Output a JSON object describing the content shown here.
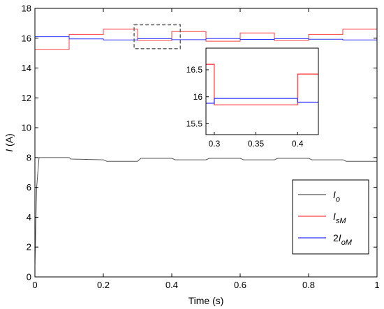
{
  "chart_data": {
    "type": "line",
    "title": "",
    "xlabel": "Time (s)",
    "ylabel": "I (A)",
    "xlim": [
      0,
      1
    ],
    "ylim": [
      0,
      18
    ],
    "xticks": [
      "0",
      "0.2",
      "0.4",
      "0.6",
      "0.8",
      "1"
    ],
    "xtick_values": [
      0,
      0.2,
      0.4,
      0.6,
      0.8,
      1
    ],
    "yticks": [
      "0",
      "2",
      "4",
      "6",
      "8",
      "10",
      "12",
      "14",
      "16",
      "18"
    ],
    "ytick_values": [
      0,
      2,
      4,
      6,
      8,
      10,
      12,
      14,
      16,
      18
    ],
    "grid": false,
    "legend": {
      "placement": "bottom-right"
    },
    "series": [
      {
        "key": "io",
        "name": "Io",
        "sym": "I",
        "sub": "o",
        "coef": "",
        "color": "#555555",
        "x": [
          0,
          0.005,
          0.012,
          0.02,
          0.1,
          0.105,
          0.2,
          0.21,
          0.3,
          0.31,
          0.4,
          0.41,
          0.5,
          0.51,
          0.6,
          0.61,
          0.7,
          0.71,
          0.8,
          0.81,
          0.9,
          0.91,
          1.0
        ],
        "y": [
          0.8,
          6.0,
          8.0,
          8.0,
          8.0,
          7.9,
          7.85,
          7.75,
          7.75,
          7.95,
          7.95,
          7.85,
          7.85,
          7.95,
          7.95,
          7.85,
          7.85,
          7.95,
          7.95,
          7.85,
          7.85,
          7.75,
          7.75
        ]
      },
      {
        "key": "ism",
        "name": "IsM",
        "sym": "I",
        "sub": "sM",
        "coef": "",
        "color": "#ff4040",
        "x": [
          0,
          0.1,
          0.1,
          0.2,
          0.2,
          0.3,
          0.3,
          0.4,
          0.4,
          0.5,
          0.5,
          0.6,
          0.6,
          0.7,
          0.7,
          0.8,
          0.8,
          0.9,
          0.9,
          1.0
        ],
        "y": [
          15.25,
          15.25,
          16.25,
          16.25,
          16.6,
          16.6,
          15.85,
          15.85,
          16.45,
          16.45,
          15.8,
          15.8,
          16.35,
          16.35,
          15.85,
          15.85,
          16.25,
          16.25,
          16.6,
          16.6
        ]
      },
      {
        "key": "2iom",
        "name": "2IoM",
        "sym": "I",
        "sub": "oM",
        "coef": "2",
        "color": "#3030ff",
        "x": [
          0,
          0.1,
          0.1,
          0.2,
          0.2,
          0.3,
          0.3,
          0.4,
          0.4,
          0.5,
          0.5,
          0.6,
          0.6,
          0.7,
          0.7,
          0.8,
          0.8,
          0.9,
          0.9,
          1.0
        ],
        "y": [
          16.1,
          16.1,
          15.95,
          15.95,
          15.88,
          15.88,
          15.97,
          15.97,
          15.9,
          15.9,
          15.98,
          15.98,
          15.92,
          15.92,
          15.97,
          15.97,
          15.93,
          15.93,
          15.88,
          15.88
        ]
      }
    ],
    "zoom_box": {
      "xlim": [
        0.29,
        0.425
      ],
      "ylim": [
        15.3,
        16.9
      ]
    },
    "inset": {
      "xlim": [
        0.29,
        0.425
      ],
      "ylim": [
        15.3,
        16.9
      ],
      "xticks": [
        "0.3",
        "0.35",
        "0.4"
      ],
      "xtick_values": [
        0.3,
        0.35,
        0.4
      ],
      "yticks": [
        "15.5",
        "16",
        "16.5"
      ],
      "ytick_values": [
        15.5,
        16,
        16.5
      ],
      "series": [
        {
          "key": "ism",
          "color": "#ff4040",
          "x": [
            0.29,
            0.3,
            0.3,
            0.4,
            0.4,
            0.425
          ],
          "y": [
            16.6,
            16.6,
            15.85,
            15.85,
            16.42,
            16.42
          ]
        },
        {
          "key": "2iom",
          "color": "#3030ff",
          "x": [
            0.29,
            0.3,
            0.3,
            0.4,
            0.4,
            0.425
          ],
          "y": [
            15.88,
            15.88,
            15.97,
            15.97,
            15.9,
            15.9
          ]
        }
      ]
    }
  }
}
